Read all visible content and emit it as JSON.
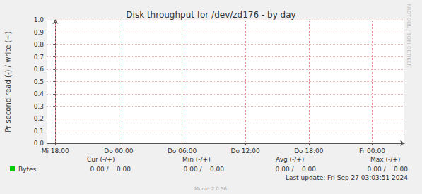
{
  "chart_data": {
    "type": "line",
    "title": "Disk throughput for /dev/zd176 - by day",
    "y_label": "Pr second read (-) / write (+)",
    "side_text": "RRDTOOL / TOBI OETIKER",
    "x": [],
    "xlim": [
      -0.75,
      33.05
    ],
    "xticks": [
      {
        "value": 0,
        "label": "Mi 18:00"
      },
      {
        "value": 6,
        "label": "Do 00:00"
      },
      {
        "value": 12,
        "label": "Do 06:00"
      },
      {
        "value": 18,
        "label": "Do 12:00"
      },
      {
        "value": 24,
        "label": "Do 18:00"
      },
      {
        "value": 30,
        "label": "Fr 00:00"
      }
    ],
    "ylim": [
      0,
      1
    ],
    "yticks": [
      {
        "value": 0,
        "label": "0.0"
      },
      0.1,
      0.2,
      0.3,
      0.4,
      0.5,
      0.6,
      0.7,
      0.8,
      0.9,
      {
        "value": 1,
        "label": "1.0"
      }
    ],
    "grid": true,
    "series": [
      {
        "name": "Bytes",
        "color": "#00cc00",
        "values": []
      }
    ],
    "legend_table": {
      "columns": [
        "Cur (-/+)",
        "Min (-/+)",
        "Avg (-/+)",
        "Max (-/+)"
      ],
      "rows": [
        {
          "name": "Bytes",
          "cells": [
            "0.00 /    0.00",
            "0.00 /    0.00",
            "0.00 /    0.00",
            "0.00 /    0.00"
          ]
        }
      ]
    },
    "last_update": "Last update: Fri Sep 27 03:03:51 2024",
    "footer": "Munin 2.0.56"
  }
}
